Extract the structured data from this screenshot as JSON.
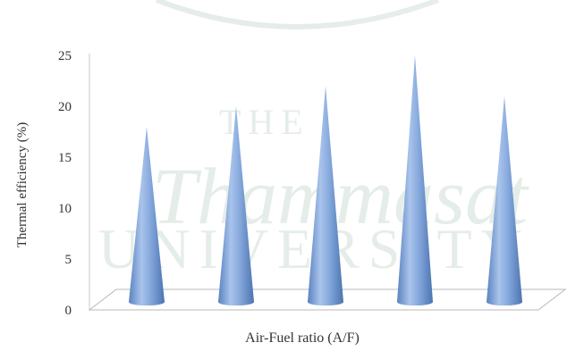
{
  "chart_data": {
    "type": "bar",
    "style": "3d-cone",
    "categories": [
      "",
      "",
      "",
      "",
      ""
    ],
    "values": [
      18,
      20,
      22,
      25,
      21
    ],
    "ylabel": "Thermal efficiency (%)",
    "xlabel": "Air-Fuel ratio (A/F)",
    "ylim": [
      0,
      25
    ],
    "yticks": [
      0,
      5,
      10,
      15,
      20,
      25
    ],
    "grid": false,
    "legend": "none",
    "colors": {
      "cone_light": "#b9d0f0",
      "cone_mid": "#7fa6dc",
      "cone_dark": "#4f77b3",
      "floor": "#ffffff",
      "floor_edge": "#b5b5b5"
    }
  },
  "watermark": {
    "lines": [
      "THE",
      "UNIVERSITY"
    ],
    "script_text": "Thammasat"
  }
}
